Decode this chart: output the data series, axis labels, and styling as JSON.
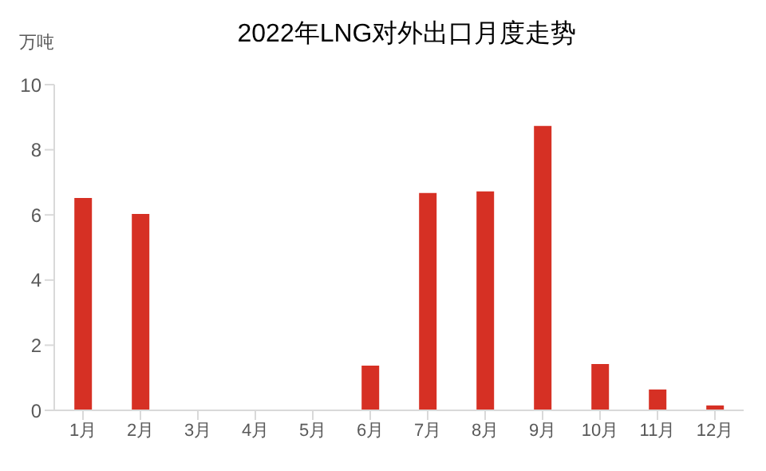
{
  "chart_data": {
    "type": "bar",
    "title": "2022年LNG对外出口月度走势",
    "ylabel": "万吨",
    "categories": [
      "1月",
      "2月",
      "3月",
      "4月",
      "5月",
      "6月",
      "7月",
      "8月",
      "9月",
      "10月",
      "11月",
      "12月"
    ],
    "values": [
      6.52,
      6.03,
      0,
      0,
      0,
      1.37,
      6.67,
      6.72,
      8.73,
      1.42,
      0.64,
      0.15
    ],
    "color": "#d63024",
    "ylim": [
      0,
      10
    ],
    "yticks": [
      0,
      2,
      4,
      6,
      8,
      10
    ],
    "grid": false
  }
}
